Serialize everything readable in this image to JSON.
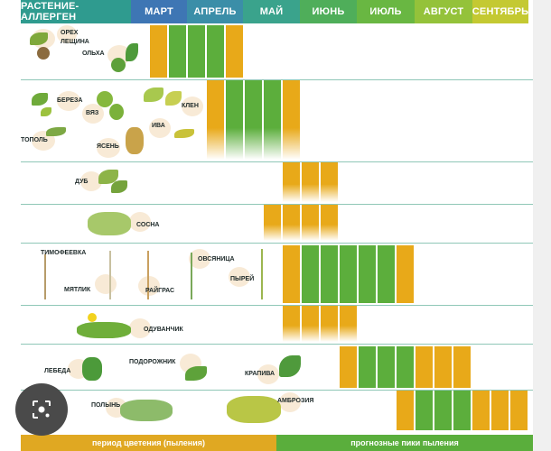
{
  "header": {
    "col0": "РАСТЕНИЕ-АЛЛЕРГЕН",
    "months": [
      "МАРТ",
      "АПРЕЛЬ",
      "МАЙ",
      "ИЮНЬ",
      "ИЮЛЬ",
      "АВГУСТ",
      "СЕНТЯБРЬ"
    ]
  },
  "rows": [
    {
      "plants": [
        "ОРЕХ",
        "ЛЕЩИНА",
        "ОЛЬХА"
      ]
    },
    {
      "plants": [
        "БЕРЕЗА",
        "КЛЕН",
        "ВЯЗ",
        "ИВА",
        "ТОПОЛЬ",
        "ЯСЕНЬ"
      ]
    },
    {
      "plants": [
        "ДУБ"
      ]
    },
    {
      "plants": [
        "СОСНА"
      ]
    },
    {
      "plants": [
        "ТИМОФЕЕВКА",
        "ОВСЯНИЦА",
        "ПЫРЕЙ",
        "МЯТЛИК",
        "РАЙГРАС"
      ]
    },
    {
      "plants": [
        "ОДУВАНЧИК"
      ]
    },
    {
      "plants": [
        "ЛЕБЕДА",
        "ПОДОРОЖНИК",
        "КРАПИВА"
      ]
    },
    {
      "plants": [
        "ПОЛЫНЬ",
        "АМБРОЗИЯ"
      ]
    }
  ],
  "footer": {
    "left": "период цветения (пыления)",
    "right": "прогнозные пики пыления"
  },
  "colors": {
    "orange": "#e8a919",
    "green": "#5cae3c",
    "teal_header": "#3a9e7f",
    "blue_header": "#3e76b4"
  },
  "icons": [
    "lens-icon"
  ]
}
